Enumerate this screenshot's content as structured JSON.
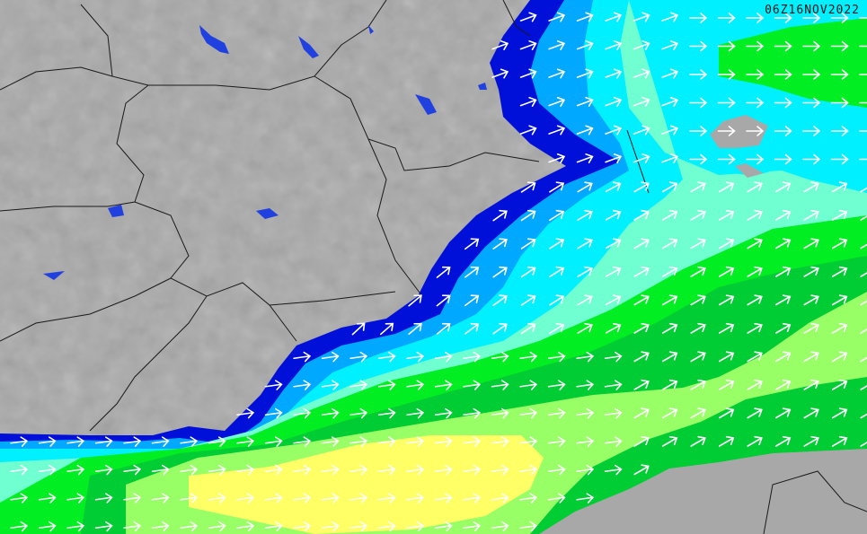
{
  "map": {
    "timestamp": "06Z16NOV2022",
    "colors": {
      "land": "#a8a8a8",
      "border": "#1a1a1a",
      "lake": "#2040e0",
      "navy": "#0010d8",
      "blue": "#00a8ff",
      "cyan": "#00f0ff",
      "aquamarine": "#70ffd0",
      "green": "#00ee22",
      "dark_green": "#00cc33",
      "light_green": "#99ff66",
      "yellow": "#ffff66",
      "arrow": "#ffffff"
    },
    "arrow_icon": "wind-direction-arrow"
  }
}
